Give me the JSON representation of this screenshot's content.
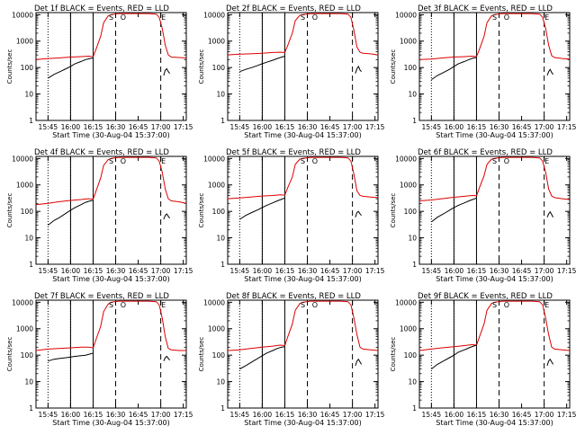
{
  "chart_data": {
    "type": "line",
    "layout_grid": [
      3,
      3
    ],
    "xlabel": "Start Time (30-Aug-04 15:37:00)",
    "ylabel": "Counts/sec",
    "xticks": [
      "15:45",
      "16:00",
      "16:15",
      "16:30",
      "16:45",
      "17:00",
      "17:15"
    ],
    "xtick_minutes": [
      8,
      23,
      38,
      53,
      68,
      83,
      98
    ],
    "xlim_minutes": [
      0,
      100
    ],
    "yscale": "log",
    "ylim": [
      1,
      12000
    ],
    "yticks": [
      "1",
      "10",
      "100",
      "1000",
      "10000"
    ],
    "ytick_values": [
      1,
      10,
      100,
      1000,
      10000
    ],
    "series_colors": {
      "lld": "#dd0000",
      "events": "#000000"
    },
    "panels": [
      {
        "title": "Det 1f BLACK = Events, RED = LLD",
        "markers_text": [
          "S",
          "O",
          "E"
        ],
        "vlines": {
          "dotted": [
            8,
            23
          ],
          "solid": [
            23,
            38
          ],
          "dashed": [
            53,
            83
          ]
        },
        "lld": {
          "x": [
            0,
            8,
            15,
            23,
            30,
            35,
            38,
            40,
            43,
            45,
            48,
            50,
            55,
            60,
            65,
            70,
            75,
            80,
            82,
            84,
            86,
            88,
            90,
            95,
            100
          ],
          "y": [
            200,
            220,
            230,
            250,
            260,
            270,
            260,
            500,
            1500,
            5000,
            9000,
            10000,
            11000,
            11000,
            11000,
            11000,
            11000,
            10500,
            8000,
            3000,
            700,
            300,
            250,
            240,
            230
          ]
        },
        "events": {
          "x": [
            8,
            12,
            16,
            20,
            23,
            26,
            30,
            33,
            36,
            38,
            85,
            86,
            87,
            88,
            89
          ],
          "y": [
            40,
            55,
            70,
            90,
            110,
            140,
            170,
            200,
            220,
            230,
            50,
            80,
            90,
            70,
            60
          ]
        }
      },
      {
        "title": "Det 2f BLACK = Events, RED = LLD",
        "markers_text": [
          "S",
          "O"
        ],
        "vlines": {
          "dotted": [
            8,
            23
          ],
          "solid": [
            23,
            38
          ],
          "dashed": [
            53,
            83
          ]
        },
        "lld": {
          "x": [
            0,
            8,
            15,
            23,
            30,
            35,
            38,
            40,
            43,
            45,
            48,
            50,
            55,
            60,
            65,
            70,
            75,
            80,
            82,
            84,
            86,
            88,
            90,
            95,
            100
          ],
          "y": [
            300,
            320,
            330,
            350,
            370,
            380,
            370,
            700,
            2000,
            6000,
            9500,
            10000,
            11000,
            11000,
            11000,
            11000,
            11000,
            10500,
            8000,
            2500,
            600,
            380,
            350,
            330,
            300
          ]
        },
        "events": {
          "x": [
            8,
            12,
            16,
            20,
            23,
            26,
            30,
            33,
            36,
            38,
            85,
            86,
            87,
            88,
            89
          ],
          "y": [
            70,
            85,
            100,
            120,
            140,
            160,
            190,
            220,
            250,
            270,
            60,
            90,
            110,
            80,
            70
          ]
        }
      },
      {
        "title": "Det 3f BLACK = Events, RED = LLD",
        "markers_text": [
          "S",
          "O",
          "E"
        ],
        "vlines": {
          "dotted": [
            8,
            23
          ],
          "solid": [
            23,
            38
          ],
          "dashed": [
            53,
            83
          ]
        },
        "lld": {
          "x": [
            0,
            8,
            15,
            23,
            30,
            35,
            38,
            40,
            43,
            45,
            48,
            50,
            55,
            60,
            65,
            70,
            75,
            80,
            82,
            84,
            86,
            88,
            90,
            95,
            100
          ],
          "y": [
            200,
            210,
            230,
            250,
            260,
            270,
            260,
            500,
            1500,
            5000,
            9000,
            10000,
            11000,
            11000,
            11000,
            11000,
            11000,
            10500,
            8000,
            3000,
            700,
            280,
            240,
            220,
            210
          ]
        },
        "events": {
          "x": [
            8,
            12,
            16,
            20,
            23,
            26,
            30,
            33,
            36,
            38,
            85,
            86,
            87,
            88,
            89
          ],
          "y": [
            35,
            50,
            65,
            85,
            110,
            140,
            170,
            200,
            230,
            240,
            50,
            70,
            85,
            65,
            55
          ]
        }
      },
      {
        "title": "Det 4f BLACK = Events, RED = LLD",
        "markers_text": [
          "S",
          "O",
          "E"
        ],
        "vlines": {
          "dotted": [
            8,
            23
          ],
          "solid": [
            23,
            38
          ],
          "dashed": [
            53,
            83
          ]
        },
        "lld": {
          "x": [
            0,
            8,
            15,
            23,
            30,
            35,
            38,
            40,
            43,
            45,
            48,
            50,
            55,
            60,
            65,
            70,
            75,
            80,
            82,
            84,
            86,
            88,
            90,
            95,
            100
          ],
          "y": [
            180,
            200,
            230,
            260,
            280,
            300,
            290,
            600,
            1800,
            5500,
            9000,
            10000,
            11000,
            11000,
            11000,
            11000,
            11000,
            10500,
            8000,
            3000,
            700,
            300,
            250,
            230,
            200
          ]
        },
        "events": {
          "x": [
            8,
            12,
            16,
            20,
            23,
            26,
            30,
            33,
            36,
            38,
            85,
            86,
            87,
            88,
            89
          ],
          "y": [
            30,
            45,
            60,
            85,
            110,
            140,
            180,
            220,
            250,
            260,
            50,
            70,
            80,
            65,
            55
          ]
        }
      },
      {
        "title": "Det 5f BLACK = Events, RED = LLD",
        "markers_text": [
          "S",
          "O"
        ],
        "vlines": {
          "dotted": [
            8,
            23
          ],
          "solid": [
            23,
            38
          ],
          "dashed": [
            53,
            83
          ]
        },
        "lld": {
          "x": [
            0,
            8,
            15,
            23,
            30,
            35,
            38,
            40,
            43,
            45,
            48,
            50,
            55,
            60,
            65,
            70,
            75,
            80,
            82,
            84,
            86,
            88,
            90,
            95,
            100
          ],
          "y": [
            300,
            320,
            350,
            380,
            400,
            420,
            410,
            800,
            2000,
            6000,
            9500,
            10000,
            11000,
            11000,
            11000,
            11000,
            11000,
            10500,
            8000,
            2500,
            600,
            400,
            370,
            350,
            330
          ]
        },
        "events": {
          "x": [
            8,
            12,
            16,
            20,
            23,
            26,
            30,
            33,
            36,
            38,
            85,
            86,
            87,
            88,
            89
          ],
          "y": [
            50,
            70,
            90,
            115,
            140,
            170,
            210,
            250,
            290,
            320,
            60,
            90,
            100,
            80,
            70
          ]
        }
      },
      {
        "title": "Det 6f BLACK = Events, RED = LLD",
        "markers_text": [
          "S",
          "O",
          "E"
        ],
        "vlines": {
          "dotted": [
            8,
            23
          ],
          "solid": [
            23,
            38
          ],
          "dashed": [
            53,
            83
          ]
        },
        "lld": {
          "x": [
            0,
            8,
            15,
            23,
            30,
            35,
            38,
            40,
            43,
            45,
            48,
            50,
            55,
            60,
            65,
            70,
            75,
            80,
            82,
            84,
            86,
            88,
            90,
            95,
            100
          ],
          "y": [
            250,
            270,
            300,
            340,
            370,
            400,
            390,
            800,
            2200,
            6000,
            9500,
            10000,
            11000,
            11000,
            11000,
            11000,
            11000,
            10500,
            8000,
            3000,
            700,
            380,
            330,
            300,
            280
          ]
        },
        "events": {
          "x": [
            8,
            12,
            16,
            20,
            23,
            26,
            30,
            33,
            36,
            38,
            85,
            86,
            87,
            88,
            89
          ],
          "y": [
            40,
            60,
            80,
            110,
            140,
            170,
            210,
            250,
            290,
            320,
            60,
            80,
            95,
            75,
            60
          ]
        }
      },
      {
        "title": "Det 7f BLACK = Events, RED = LLD",
        "markers_text": [
          "S",
          "O",
          "E"
        ],
        "vlines": {
          "dotted": [
            8,
            23
          ],
          "solid": [
            23,
            38
          ],
          "dashed": [
            53,
            83
          ]
        },
        "lld": {
          "x": [
            0,
            8,
            15,
            23,
            30,
            35,
            38,
            40,
            43,
            45,
            48,
            50,
            55,
            60,
            65,
            70,
            75,
            80,
            82,
            84,
            86,
            88,
            90,
            95,
            100
          ],
          "y": [
            150,
            170,
            180,
            190,
            200,
            200,
            190,
            400,
            1200,
            4500,
            8500,
            10000,
            11000,
            11000,
            11000,
            11000,
            11000,
            10500,
            8000,
            2500,
            500,
            180,
            160,
            150,
            150
          ]
        },
        "events": {
          "x": [
            8,
            12,
            16,
            20,
            23,
            26,
            30,
            33,
            36,
            38,
            85,
            86,
            87,
            88,
            89
          ],
          "y": [
            60,
            70,
            75,
            80,
            85,
            90,
            95,
            100,
            110,
            120,
            60,
            80,
            90,
            75,
            65
          ]
        }
      },
      {
        "title": "Det 8f BLACK = Events, RED = LLD",
        "markers_text": [
          "S",
          "O"
        ],
        "vlines": {
          "dotted": [
            8,
            23
          ],
          "solid": [
            23,
            38
          ],
          "dashed": [
            53,
            83
          ]
        },
        "lld": {
          "x": [
            0,
            8,
            15,
            23,
            30,
            35,
            38,
            40,
            43,
            45,
            48,
            50,
            55,
            60,
            65,
            70,
            75,
            80,
            82,
            84,
            86,
            88,
            90,
            95,
            100
          ],
          "y": [
            150,
            160,
            180,
            200,
            220,
            240,
            230,
            500,
            1500,
            5000,
            9000,
            10000,
            11000,
            11000,
            11000,
            11000,
            11000,
            10500,
            8000,
            2500,
            600,
            200,
            170,
            160,
            150
          ]
        },
        "events": {
          "x": [
            8,
            12,
            16,
            20,
            23,
            26,
            30,
            33,
            36,
            38,
            85,
            86,
            87,
            88,
            89
          ],
          "y": [
            30,
            40,
            55,
            75,
            95,
            120,
            150,
            180,
            200,
            210,
            40,
            60,
            70,
            55,
            45
          ]
        }
      },
      {
        "title": "Det 9f BLACK = Events, RED = LLD",
        "markers_text": [
          "S",
          "O",
          "E"
        ],
        "vlines": {
          "dotted": [
            8,
            23
          ],
          "solid": [
            23,
            38
          ],
          "dashed": [
            53,
            83
          ]
        },
        "lld": {
          "x": [
            0,
            8,
            15,
            23,
            30,
            35,
            38,
            40,
            43,
            45,
            48,
            50,
            55,
            60,
            65,
            70,
            75,
            80,
            82,
            84,
            86,
            88,
            90,
            95,
            100
          ],
          "y": [
            150,
            170,
            190,
            210,
            230,
            250,
            240,
            500,
            1500,
            5000,
            9000,
            10000,
            11000,
            11000,
            11000,
            11000,
            11000,
            10500,
            8000,
            2500,
            600,
            200,
            170,
            160,
            150
          ]
        },
        "events": {
          "x": [
            8,
            12,
            16,
            20,
            23,
            26,
            30,
            33,
            36,
            38,
            85,
            86,
            87,
            88,
            89
          ],
          "y": [
            30,
            45,
            60,
            80,
            100,
            130,
            160,
            190,
            220,
            240,
            40,
            60,
            70,
            55,
            45
          ]
        }
      }
    ]
  }
}
